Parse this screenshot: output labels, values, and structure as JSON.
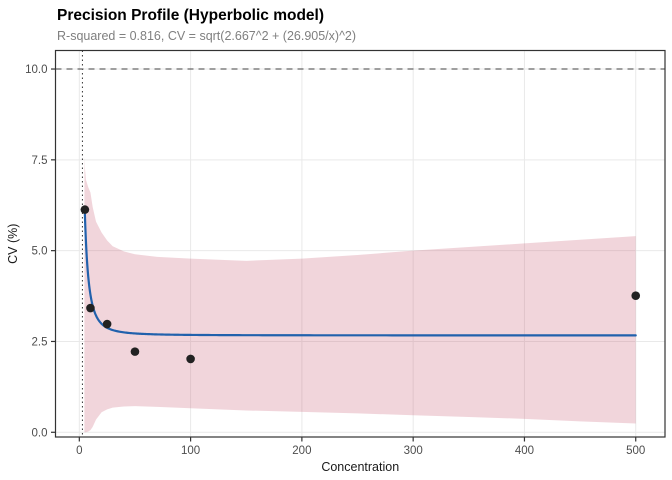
{
  "chart_data": {
    "type": "line",
    "subtype": "scatter-with-fit-and-confidence-ribbon",
    "title": "Precision Profile (Hyperbolic model)",
    "subtitle": "R-squared = 0.816, CV = sqrt(2.667^2 + (26.905/x)^2)",
    "xlabel": "Concentration",
    "ylabel": "CV (%)",
    "r_squared": 0.816,
    "xlim": [
      -21.4,
      526.3
    ],
    "ylim": [
      -0.13,
      10.51
    ],
    "x_ticks": {
      "values": [
        0,
        100,
        200,
        300,
        400,
        500
      ],
      "labels": [
        "0",
        "100",
        "200",
        "300",
        "400",
        "500"
      ]
    },
    "y_ticks": {
      "values": [
        0,
        2.5,
        5,
        7.5,
        10
      ],
      "labels": [
        "0.0",
        "2.5",
        "5.0",
        "7.5",
        "10.0"
      ]
    },
    "grid": true,
    "legend": false,
    "points": [
      [
        5,
        6.13
      ],
      [
        10,
        3.42
      ],
      [
        25,
        2.98
      ],
      [
        50,
        2.22
      ],
      [
        100,
        2.02
      ],
      [
        500,
        3.76
      ]
    ],
    "fit_curve": {
      "model": "hyperbolic",
      "a": 2.667,
      "b": 26.905,
      "x_start": 5,
      "x_end": 500
    },
    "ribbon": {
      "x": [
        4.6,
        5,
        6,
        8,
        10,
        12,
        15,
        20,
        25,
        30,
        40,
        50,
        70,
        100,
        150,
        200,
        250,
        300,
        350,
        400,
        450,
        500
      ],
      "upper": [
        7.6,
        7.3,
        6.95,
        6.75,
        6.6,
        6.2,
        5.8,
        5.5,
        5.28,
        5.12,
        4.98,
        4.9,
        4.83,
        4.78,
        4.72,
        4.78,
        4.88,
        5.0,
        5.1,
        5.2,
        5.3,
        5.4
      ],
      "lower": [
        0.0,
        0.0,
        0.0,
        0.02,
        0.06,
        0.15,
        0.35,
        0.55,
        0.63,
        0.68,
        0.71,
        0.72,
        0.7,
        0.66,
        0.6,
        0.56,
        0.52,
        0.47,
        0.42,
        0.37,
        0.3,
        0.24
      ]
    },
    "reference_lines": {
      "horizontal_dashed_y": 10,
      "vertical_dotted_x": 2.79
    },
    "colors": {
      "curve": "#2161ac",
      "ribbon": "#c65168",
      "ribbon_alpha": 0.24,
      "points": "#222222",
      "dashed_line": "#666666",
      "dotted_line": "#333333",
      "gridline": "#e9e9e9",
      "panel_border": "#333333",
      "tick": "#333333",
      "tick_label": "#4d4d4d",
      "axis_title": "#1a1a1a",
      "subtitle": "#7f7f7f",
      "background": "#ffffff"
    }
  }
}
